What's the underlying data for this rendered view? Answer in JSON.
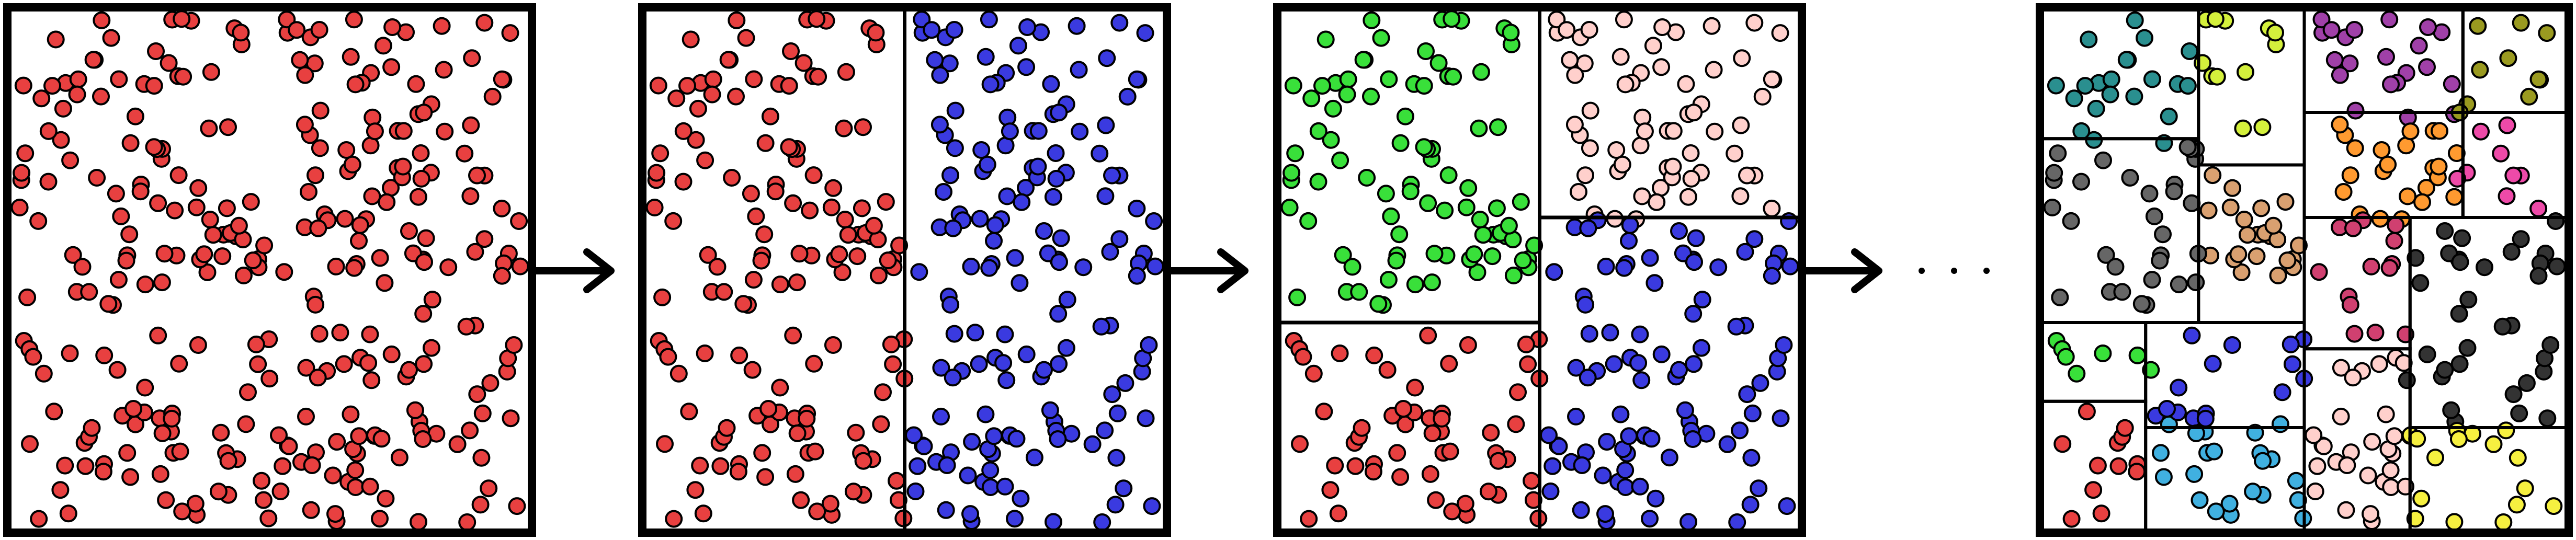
{
  "colors": {
    "stage1": [
      "#e84040"
    ],
    "stage2": [
      "#e84040",
      "#3a3ae0"
    ],
    "stage3": [
      "#e84040",
      "#3a3ae0",
      "#39e03a",
      "#ffd0cc"
    ],
    "stage4": [
      "#2a8f8f",
      "#d4f03c",
      "#a040a8",
      "#9a9a20",
      "#666666",
      "#d9a070",
      "#ff9a30",
      "#ee4aa8",
      "#39e03a",
      "#3a3ae0",
      "#d04070",
      "#ffd0cc",
      "#333333",
      "#e84040",
      "#40b0e0",
      "#f6f040"
    ]
  },
  "icons": {
    "arrow": "right-arrow-icon",
    "ellipsis": "ellipsis-icon"
  }
}
